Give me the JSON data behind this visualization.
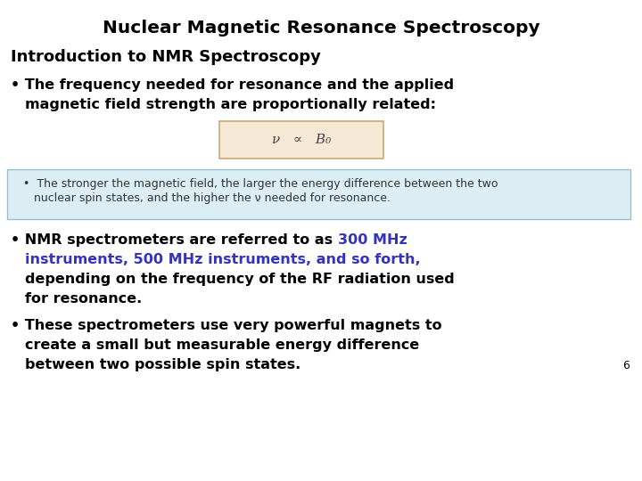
{
  "title": "Nuclear Magnetic Resonance Spectroscopy",
  "subtitle": "Introduction to NMR Spectroscopy",
  "bg_color": "#ffffff",
  "title_color": "#000000",
  "body_color": "#000000",
  "highlight_color": "#3333bb",
  "formula_text": "ν   ∝   B₀",
  "formula_box_facecolor": "#f5e8d5",
  "formula_box_edgecolor": "#c8a87a",
  "info_box_facecolor": "#daeef3",
  "info_box_edgecolor": "#9bbfcc",
  "info_line1": "  •  The stronger the magnetic field, the larger the energy difference between the two",
  "info_line2": "     nuclear spin states, and the higher the ν needed for resonance.",
  "b2_black1": "• NMR spectrometers are referred to as ",
  "b2_blue1": "300 MHz",
  "b2_blue2": "instruments, 500 MHz instruments, and so forth,",
  "b2_black2": "depending on the frequency of the RF radiation used",
  "b2_black3": "for resonance.",
  "b3_line1": "• These spectrometers use very powerful magnets to",
  "b3_line2": "  create a small but measurable energy difference",
  "b3_line3": "  between two possible spin states.",
  "page_num": "6",
  "font": "DejaVu Sans"
}
